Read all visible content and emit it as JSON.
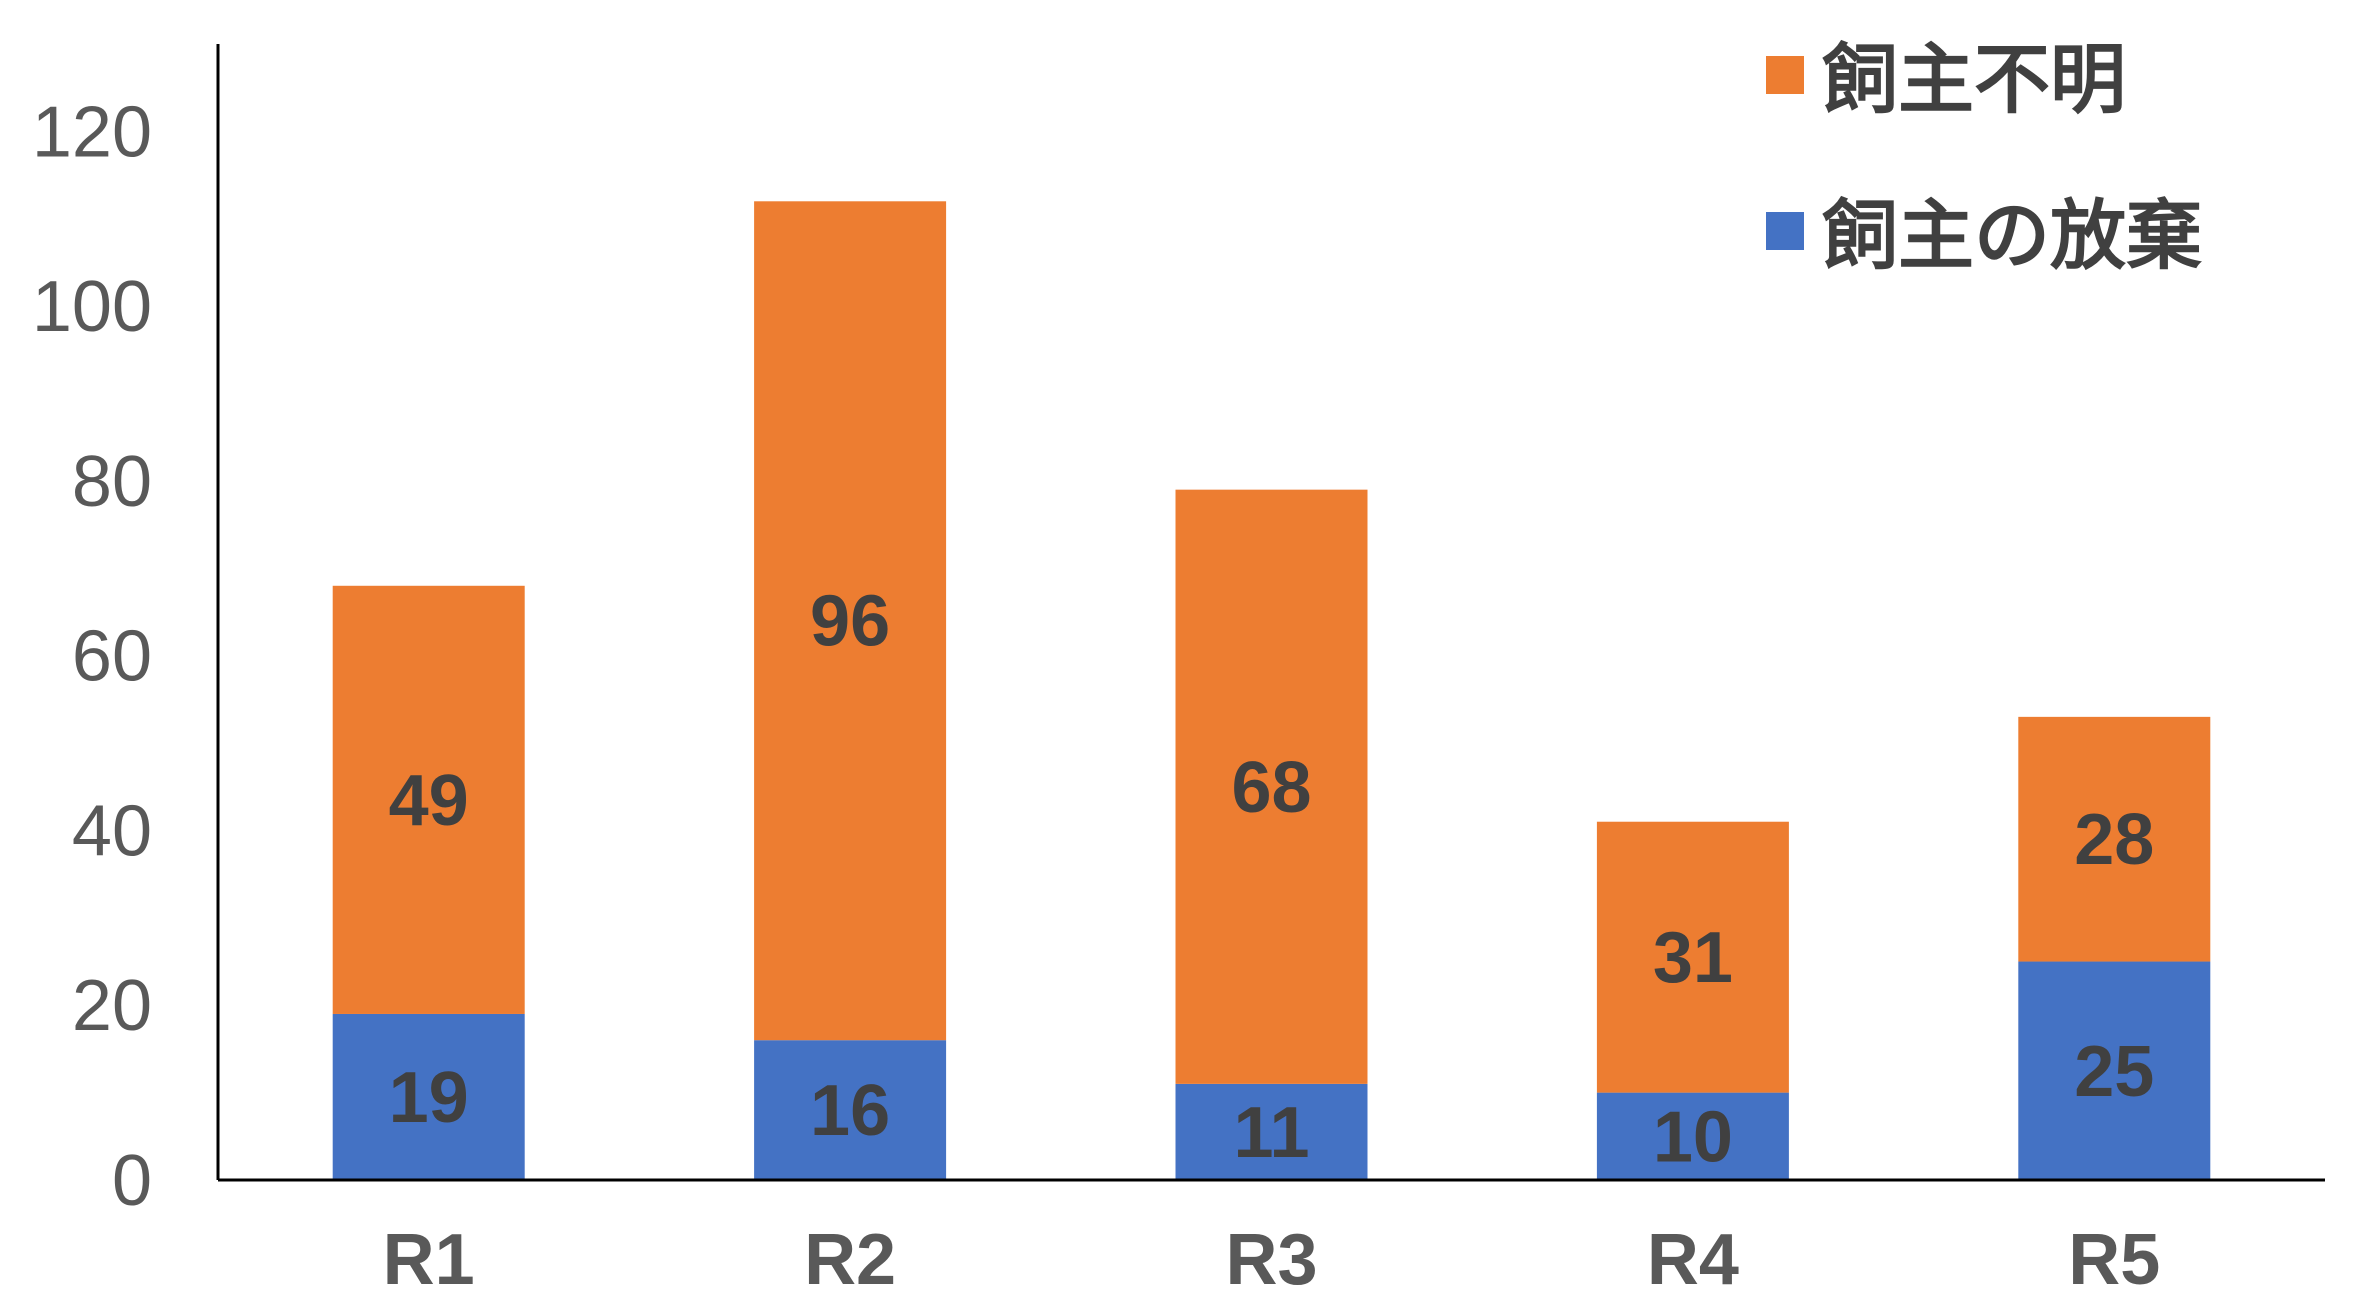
{
  "chart_data": {
    "type": "bar",
    "stacked": true,
    "categories": [
      "R1",
      "R2",
      "R3",
      "R4",
      "R5"
    ],
    "series": [
      {
        "name": "飼主の放棄",
        "color": "#4472C4",
        "values": [
          19,
          16,
          11,
          10,
          25
        ]
      },
      {
        "name": "飼主不明",
        "color": "#ED7D31",
        "values": [
          49,
          96,
          68,
          31,
          28
        ]
      }
    ],
    "ylim": [
      0,
      130
    ],
    "yticks": [
      0,
      20,
      40,
      60,
      80,
      100,
      120
    ],
    "legend_order": [
      "飼主不明",
      "飼主の放棄"
    ],
    "legend_position": "top-right",
    "grid": false
  }
}
